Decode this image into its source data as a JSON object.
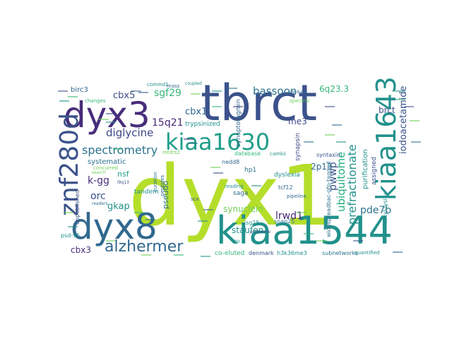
{
  "words": [
    {
      "text": "dyx1",
      "color": "#b5de2b"
    },
    {
      "text": "tbrct",
      "color": "#3b528b"
    },
    {
      "text": "kiaa1544",
      "color": "#21918c"
    },
    {
      "text": "dyx3",
      "color": "#472d7b"
    },
    {
      "text": "dyx8",
      "color": "#31688e"
    },
    {
      "text": "znf280d",
      "color": "#3b528b"
    },
    {
      "text": "kiaa1643",
      "color": "#21918c"
    },
    {
      "text": "kiaa1630",
      "color": "#1f9e89"
    },
    {
      "text": "alzhermer",
      "color": "#31688e"
    },
    {
      "text": "spectrometry",
      "color": "#2c728e"
    },
    {
      "text": "prefractionate",
      "color": "#21918c"
    },
    {
      "text": "iodoacetamide",
      "color": "#3b528b"
    },
    {
      "text": "diglycine",
      "color": "#3e4989"
    },
    {
      "text": "ubiquitome",
      "color": "#28ae80"
    },
    {
      "text": "bassoon",
      "color": "#2c728e"
    },
    {
      "text": "15q21",
      "color": "#482878"
    },
    {
      "text": "sgf29",
      "color": "#35b779"
    },
    {
      "text": "cbx5",
      "color": "#3e4989"
    },
    {
      "text": "cbx1",
      "color": "#31688e"
    },
    {
      "text": "k-gg",
      "color": "#472d7b"
    },
    {
      "text": "orc",
      "color": "#3b528b"
    },
    {
      "text": "gkap",
      "color": "#21918c"
    },
    {
      "text": "pwwp",
      "color": "#3b528b"
    },
    {
      "text": "pde7b",
      "color": "#2c728e"
    },
    {
      "text": "lrwd1",
      "color": "#482878"
    },
    {
      "text": "6q23.3",
      "color": "#35b779"
    },
    {
      "text": "me3",
      "color": "#3e4989"
    },
    {
      "text": "2p13",
      "color": "#31688e"
    },
    {
      "text": "cbx3",
      "color": "#472d7b"
    },
    {
      "text": "staufen",
      "color": "#21918c"
    },
    {
      "text": "synuclein",
      "color": "#6ece58"
    },
    {
      "text": "brct",
      "color": "#3b528b"
    },
    {
      "text": "systematic",
      "color": "#2c728e"
    },
    {
      "text": "nsf",
      "color": "#1f9e89"
    },
    {
      "text": "trypsinized",
      "color": "#21918c"
    },
    {
      "text": "synaptotagmin",
      "color": "#31688e"
    },
    {
      "text": "purification",
      "color": "#21918c"
    },
    {
      "text": "assigned",
      "color": "#3b528b"
    },
    {
      "text": "birc3",
      "color": "#31688e"
    },
    {
      "text": "pseudo",
      "color": "#2c728e"
    },
    {
      "text": "dyslexia",
      "color": "#21918c"
    },
    {
      "text": "synapsin",
      "color": "#3e4989"
    },
    {
      "text": "tandem",
      "color": "#21918c"
    },
    {
      "text": "unpublished",
      "color": "#3b528b"
    },
    {
      "text": "nedd8",
      "color": "#31688e"
    },
    {
      "text": "hp1",
      "color": "#2c728e"
    },
    {
      "text": "saga",
      "color": "#31688e"
    },
    {
      "text": "psd-95",
      "color": "#21918c"
    },
    {
      "text": "widespreadbac-gfp-tagged",
      "color": "#2c728e"
    },
    {
      "text": "trimethyl-lysine",
      "color": "#21918c"
    },
    {
      "text": "syntaxin",
      "color": "#3b528b"
    },
    {
      "text": "snap25",
      "color": "#2c728e"
    },
    {
      "text": "tcf12",
      "color": "#31688e"
    },
    {
      "text": "isg15",
      "color": "#21918c"
    },
    {
      "text": "co-eluted",
      "color": "#35b779"
    },
    {
      "text": "denmark",
      "color": "#3b528b"
    },
    {
      "text": "h3k36me3",
      "color": "#21918c"
    },
    {
      "text": "subnetworks",
      "color": "#2c728e"
    },
    {
      "text": "quantified",
      "color": "#21918c"
    },
    {
      "text": "commd1",
      "color": "#21918c"
    },
    {
      "text": "mass",
      "color": "#31688e"
    },
    {
      "text": "curation",
      "color": "#2c728e"
    },
    {
      "text": "peptides",
      "color": "#31688e"
    },
    {
      "text": "scx",
      "color": "#3b528b"
    },
    {
      "text": "reading",
      "color": "#21918c"
    },
    {
      "text": "database",
      "color": "#35b779"
    },
    {
      "text": "camkii",
      "color": "#21918c"
    },
    {
      "text": "pipeline",
      "color": "#31688e"
    },
    {
      "text": "concurred",
      "color": "#6ece58"
    },
    {
      "text": "search",
      "color": "#6ece58"
    },
    {
      "text": "readers",
      "color": "#2c728e"
    },
    {
      "text": "changes",
      "color": "#35b779"
    },
    {
      "text": "spectral",
      "color": "#6ece58"
    },
    {
      "text": "proteome",
      "color": "#3b528b"
    },
    {
      "text": "modular",
      "color": "#31688e"
    },
    {
      "text": "coupled",
      "color": "#21918c"
    },
    {
      "text": "l9q13",
      "color": "#3b528b"
    },
    {
      "text": "mtdrs2",
      "color": "#6ece58"
    },
    {
      "text": "ddr",
      "color": "#21918c"
    }
  ]
}
